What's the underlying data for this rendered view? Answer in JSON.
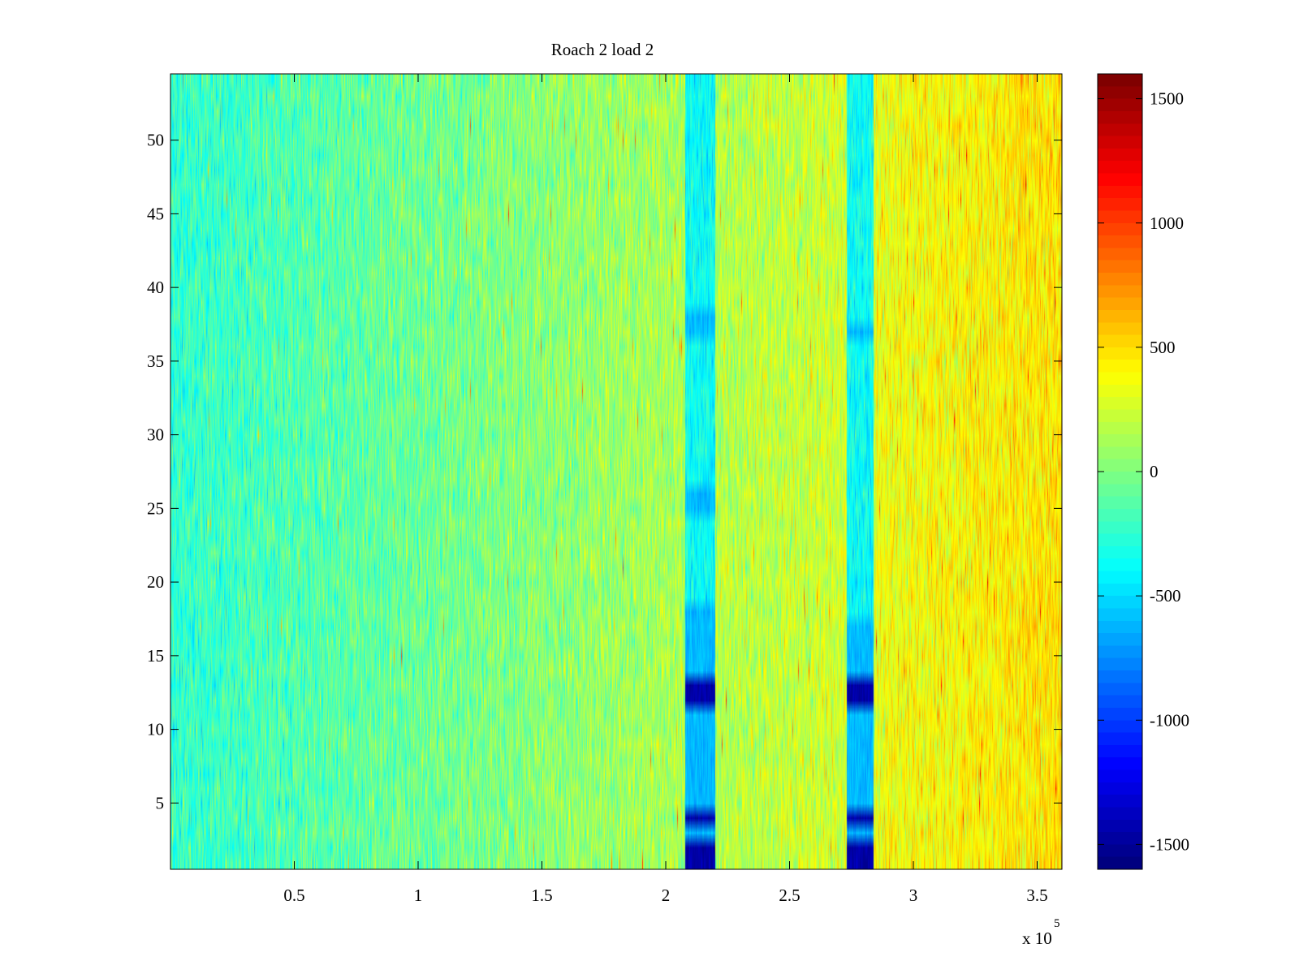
{
  "chart_data": {
    "type": "heatmap",
    "title": "Roach 2 load 2",
    "xlabel": "",
    "ylabel": "",
    "x_exponent_label": {
      "base": "x 10",
      "exponent": "5"
    },
    "x_range": [
      0,
      360000
    ],
    "y_range": [
      0.5,
      54.5
    ],
    "x_ticks": [
      50000,
      100000,
      150000,
      200000,
      250000,
      300000,
      350000
    ],
    "x_tick_labels": [
      "0.5",
      "1",
      "1.5",
      "2",
      "2.5",
      "3",
      "3.5"
    ],
    "y_ticks": [
      5,
      10,
      15,
      20,
      25,
      30,
      35,
      40,
      45,
      50
    ],
    "y_tick_labels": [
      "5",
      "10",
      "15",
      "20",
      "25",
      "30",
      "35",
      "40",
      "45",
      "50"
    ],
    "colormap": "jet",
    "clim": [
      -1600,
      1600
    ],
    "colorbar_ticks": [
      1500,
      1000,
      500,
      0,
      -500,
      -1000,
      -1500
    ],
    "colorbar_tick_labels": [
      "1500",
      "1000",
      "500",
      "0",
      "-500",
      "-1000",
      "-1500"
    ],
    "rows": 54,
    "trend": {
      "x_start": 0,
      "value_start": -250,
      "x_end": 360000,
      "value_end": 420
    },
    "dropout_bands": [
      {
        "x_start": 208000,
        "x_end": 220000,
        "rows_deep_blue": [
          1,
          2,
          4,
          12,
          13
        ],
        "rows_light_blue": [
          3,
          5,
          6,
          7,
          8,
          9,
          10,
          11,
          14,
          15,
          16,
          17,
          18,
          25,
          26,
          37,
          38
        ]
      },
      {
        "x_start": 273000,
        "x_end": 284000,
        "rows_deep_blue": [
          1,
          2,
          4,
          12,
          13
        ],
        "rows_light_blue": [
          3,
          5,
          6,
          7,
          8,
          9,
          10,
          11,
          14,
          15,
          16,
          17,
          37
        ]
      }
    ],
    "grid": false,
    "colorbar_position": "right"
  }
}
